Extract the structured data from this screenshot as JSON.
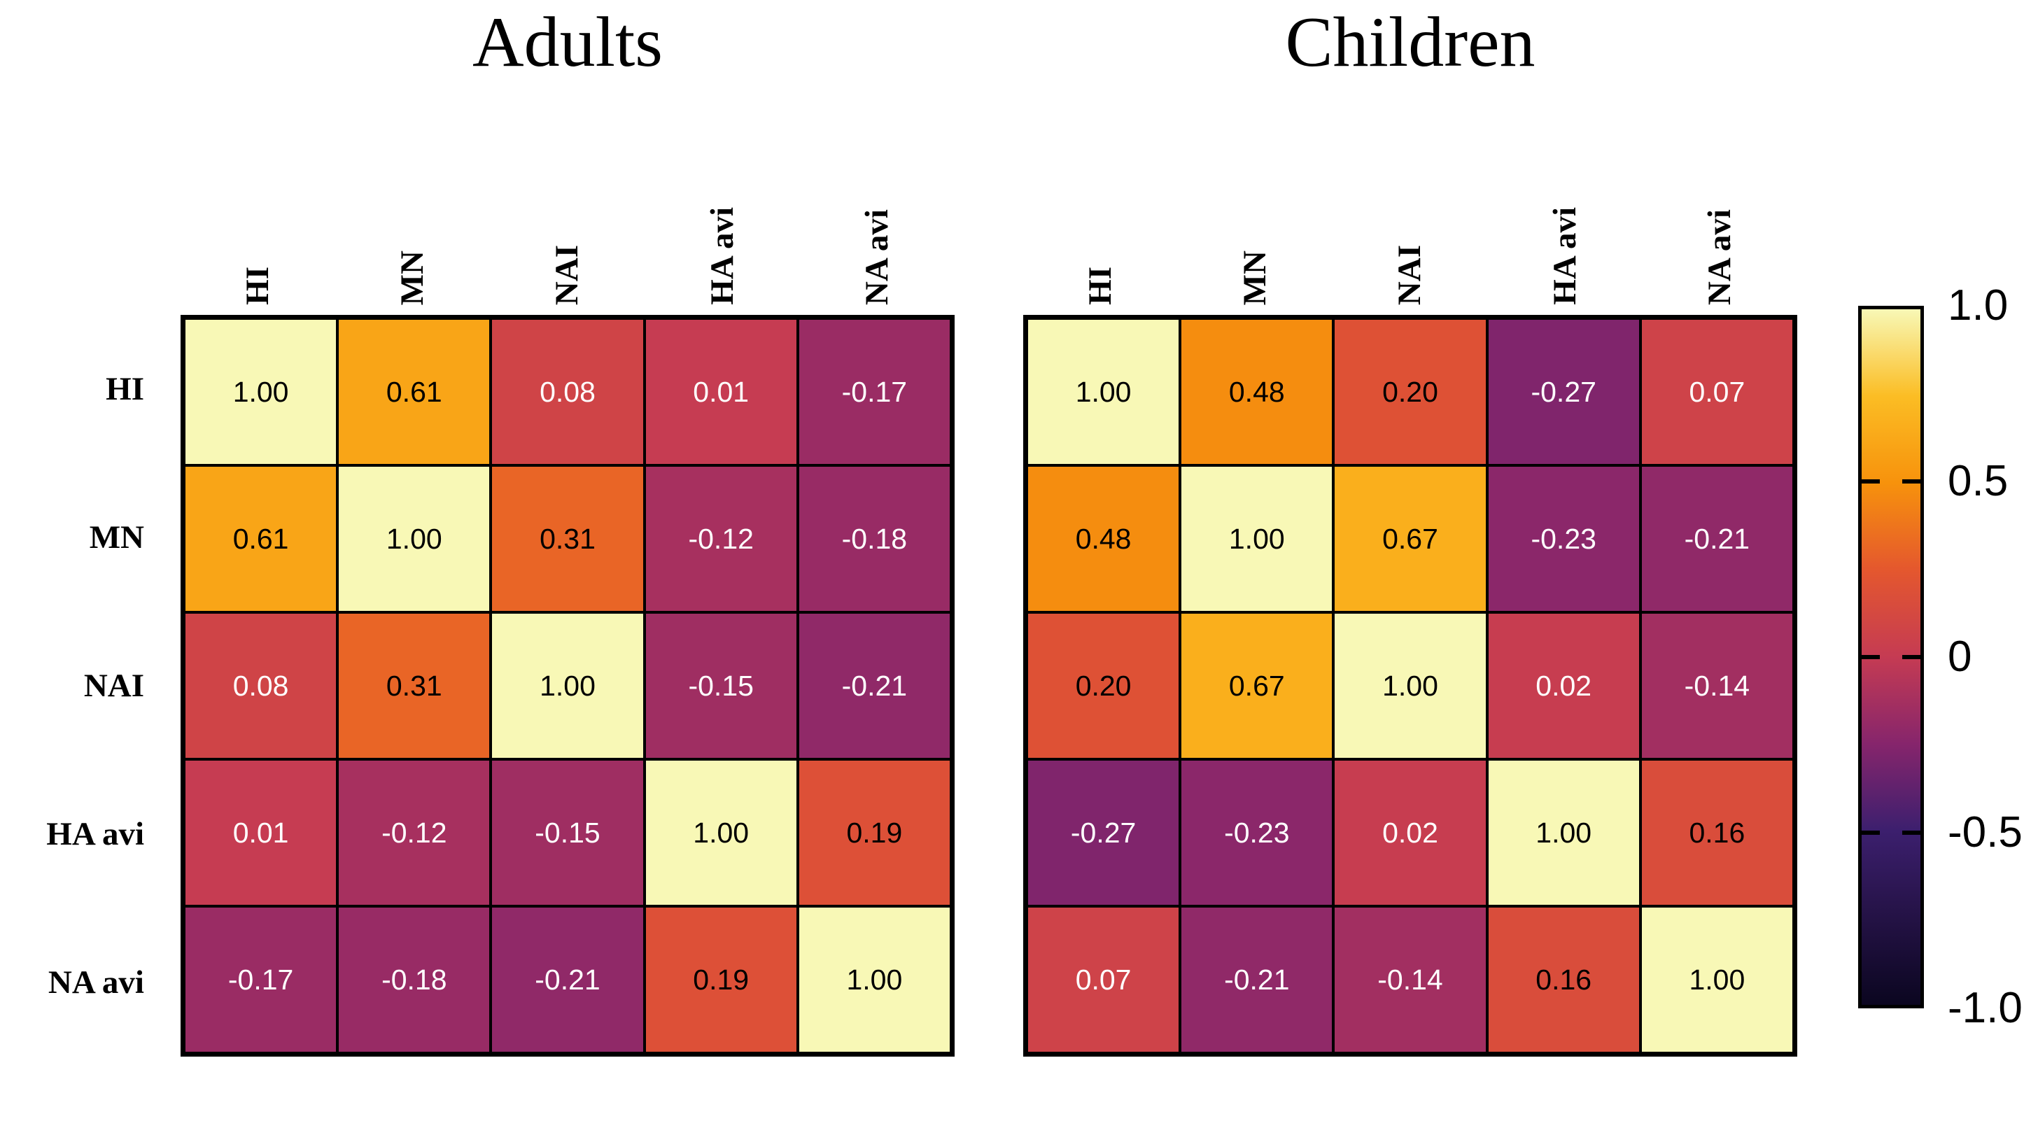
{
  "figure": {
    "background": "#ffffff"
  },
  "chart_data": [
    {
      "type": "heatmap",
      "title": "Adults",
      "rows": [
        "HI",
        "MN",
        "NAI",
        "HA avi",
        "NA avi"
      ],
      "cols": [
        "HI",
        "MN",
        "NAI",
        "HA avi",
        "NA avi"
      ],
      "values": [
        [
          1.0,
          0.61,
          0.08,
          0.01,
          -0.17
        ],
        [
          0.61,
          1.0,
          0.31,
          -0.12,
          -0.18
        ],
        [
          0.08,
          0.31,
          1.0,
          -0.15,
          -0.21
        ],
        [
          0.01,
          -0.12,
          -0.15,
          1.0,
          0.19
        ],
        [
          -0.17,
          -0.18,
          -0.21,
          0.19,
          1.0
        ]
      ],
      "value_range": [
        -1,
        1
      ],
      "show_row_labels": true
    },
    {
      "type": "heatmap",
      "title": "Children",
      "rows": [
        "HI",
        "MN",
        "NAI",
        "HA avi",
        "NA avi"
      ],
      "cols": [
        "HI",
        "MN",
        "NAI",
        "HA avi",
        "NA avi"
      ],
      "values": [
        [
          1.0,
          0.48,
          0.2,
          -0.27,
          0.07
        ],
        [
          0.48,
          1.0,
          0.67,
          -0.23,
          -0.21
        ],
        [
          0.2,
          0.67,
          1.0,
          0.02,
          -0.14
        ],
        [
          -0.27,
          -0.23,
          0.02,
          1.0,
          0.16
        ],
        [
          0.07,
          -0.21,
          -0.14,
          0.16,
          1.0
        ]
      ],
      "value_range": [
        -1,
        1
      ],
      "show_row_labels": false
    }
  ],
  "colorbar": {
    "min": -1.0,
    "max": 1.0,
    "tick_labels": [
      "1.0",
      "0.5",
      "0",
      "-0.5",
      "-1.0"
    ],
    "tick_values": [
      1.0,
      0.5,
      0.0,
      -0.5,
      -1.0
    ],
    "colormap_stops": [
      {
        "v": -1.0,
        "c": "#0b0620"
      },
      {
        "v": -0.75,
        "c": "#241245"
      },
      {
        "v": -0.5,
        "c": "#3c1f6e"
      },
      {
        "v": -0.25,
        "c": "#86256c"
      },
      {
        "v": 0.0,
        "c": "#c53b53"
      },
      {
        "v": 0.25,
        "c": "#e4572e"
      },
      {
        "v": 0.5,
        "c": "#f7920c"
      },
      {
        "v": 0.75,
        "c": "#fbbd24"
      },
      {
        "v": 1.0,
        "c": "#f8f8b6"
      }
    ]
  },
  "style_colors": {
    "grid_line": "#000000",
    "cell_text_dark": "#000000",
    "cell_text_light": "#ffffff",
    "dark_text_min_value": 0.12
  }
}
